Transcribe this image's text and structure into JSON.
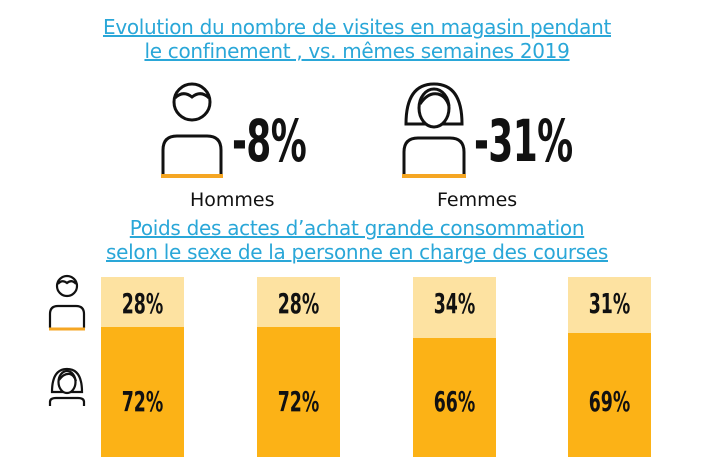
{
  "title": "Evolution du nombre de visites en magasin pendant",
  "title_line2": "le confinement , vs. mêmes semaines 2019",
  "men": {
    "label": "Hommes",
    "value": "-8%"
  },
  "women": {
    "label": "Femmes",
    "value": "-31%"
  },
  "subtitle_line1": "Poids des actes d’achat grande consommation",
  "subtitle_line2": "selon le sexe de la personne en charge des courses",
  "colors": {
    "title": "#2aa7d8",
    "men_segment": "#fde2a1",
    "women_segment": "#fcb216",
    "icon_accent": "#f5a623"
  },
  "chart_data": [
    {
      "type": "bar",
      "title": "Evolution du nombre de visites en magasin pendant le confinement , vs. mêmes semaines 2019",
      "categories": [
        "Hommes",
        "Femmes"
      ],
      "values": [
        -8,
        -31
      ],
      "value_labels": [
        "-8%",
        "-31%"
      ]
    },
    {
      "type": "bar",
      "stacked": true,
      "title": "Poids des actes d’achat grande consommation selon le sexe de la personne en charge des courses",
      "categories": [
        "",
        "",
        "",
        ""
      ],
      "series": [
        {
          "values": [
            28,
            28,
            34,
            31
          ],
          "labels": [
            "28%",
            "28%",
            "34%",
            "31%"
          ]
        },
        {
          "values": [
            72,
            72,
            66,
            69
          ],
          "labels": [
            "72%",
            "72%",
            "66%",
            "69%"
          ]
        }
      ]
    }
  ]
}
